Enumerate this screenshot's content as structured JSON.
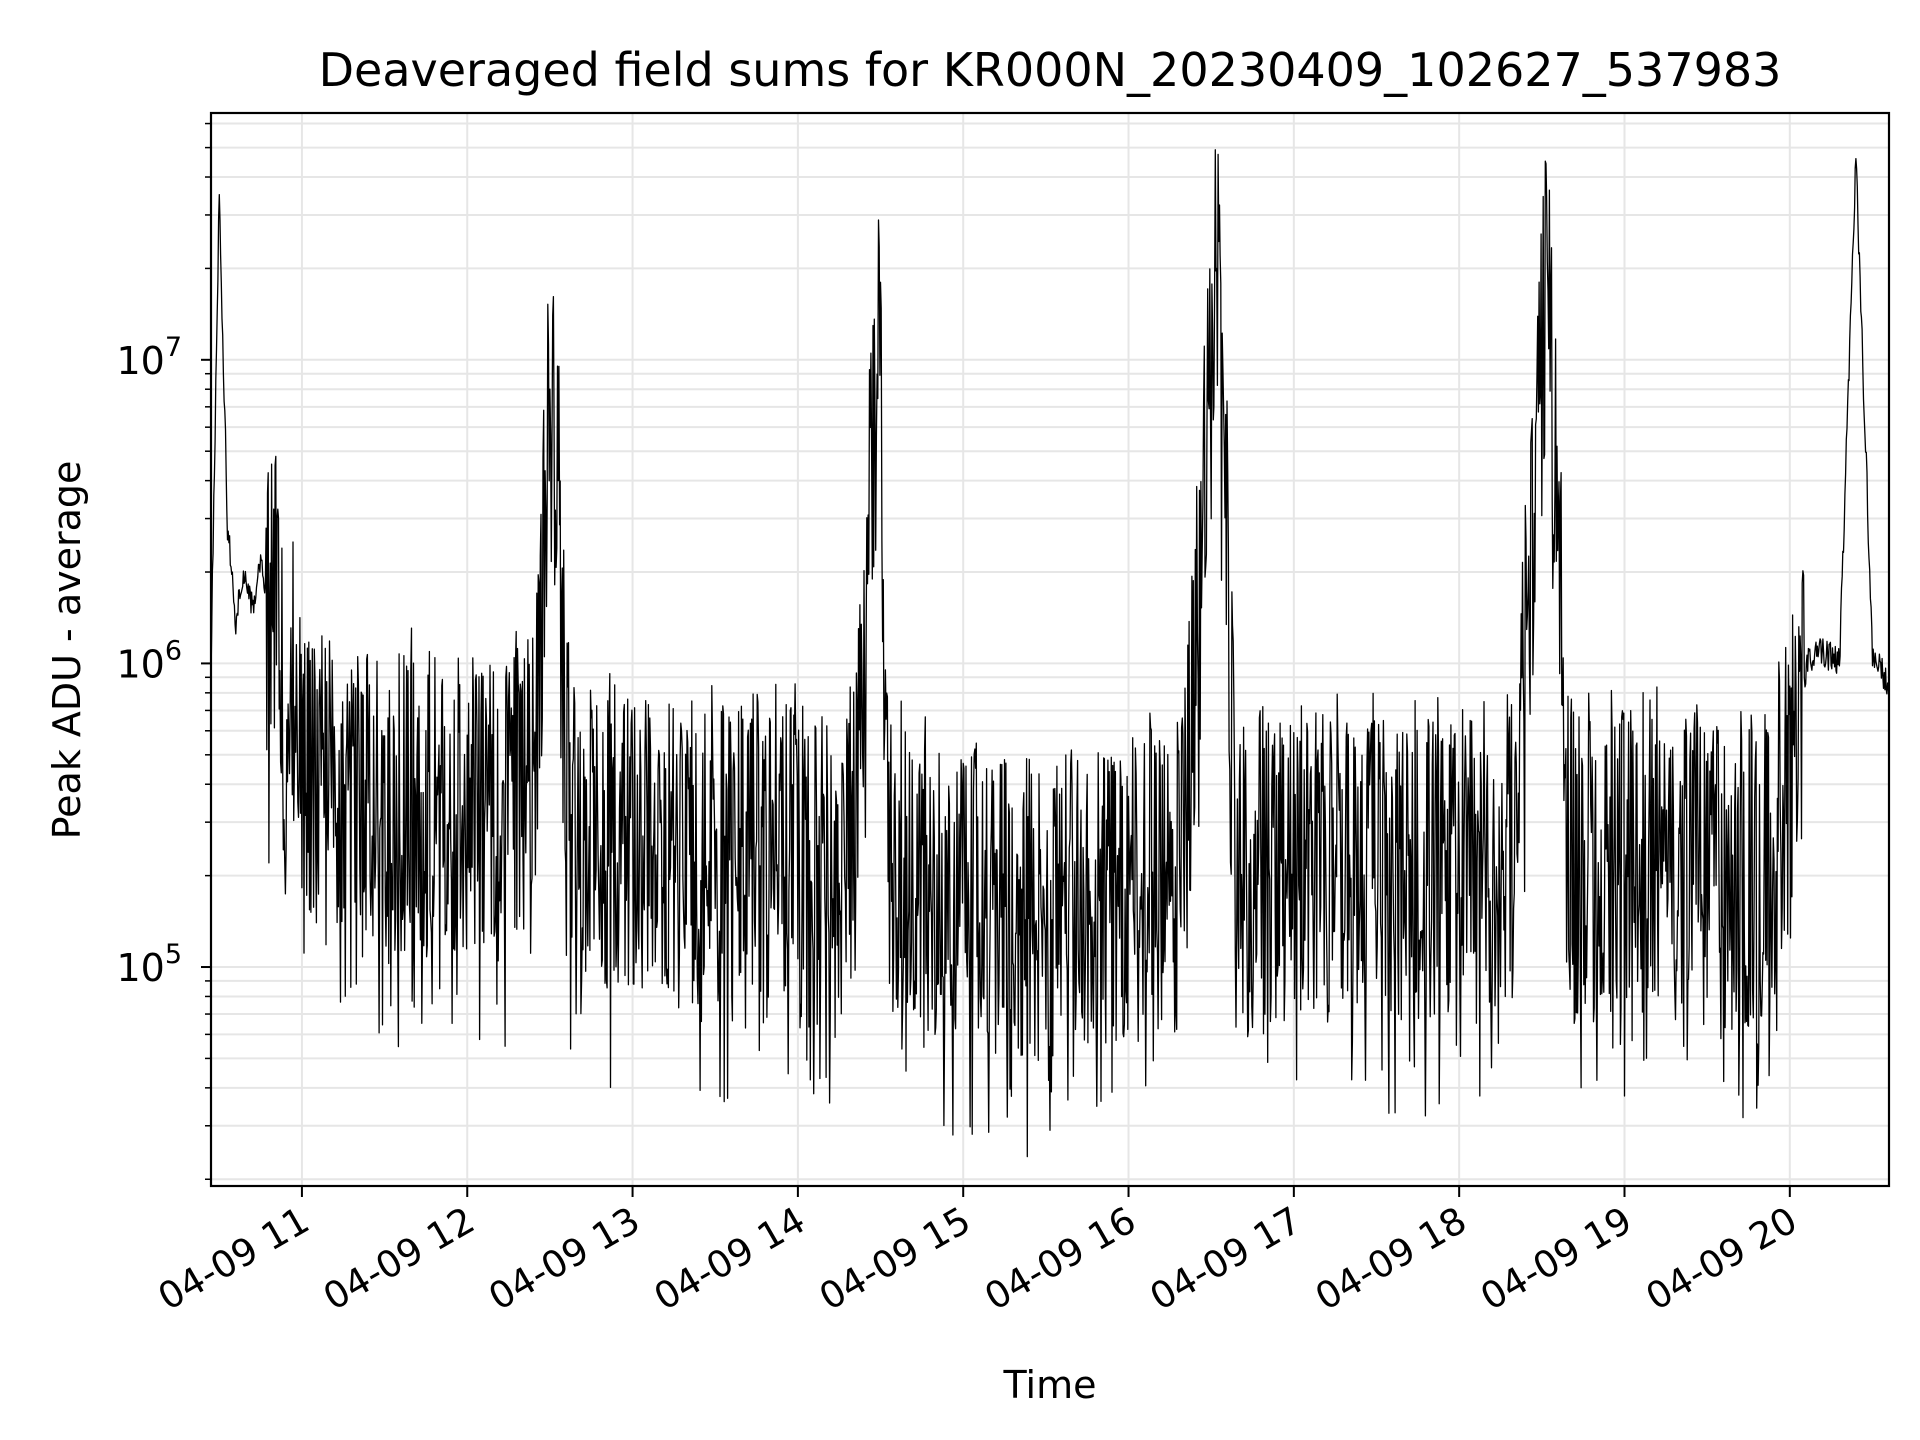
{
  "chart_data": {
    "type": "line",
    "title": "Deaveraged field sums for KR000N_20230409_102627_537983",
    "xlabel": "Time",
    "ylabel": "Peak ADU - average",
    "yscale": "log",
    "grid": true,
    "line_color": "#000000",
    "xlim": [
      "2023-04-09 10:27",
      "2023-04-09 20:36"
    ],
    "ylim": [
      19000,
      65000000
    ],
    "x_tick_labels": [
      "04-09 11",
      "04-09 12",
      "04-09 13",
      "04-09 14",
      "04-09 15",
      "04-09 16",
      "04-09 17",
      "04-09 18",
      "04-09 19",
      "04-09 20"
    ],
    "y_tick_labels": [
      {
        "value": 100000,
        "base": "10",
        "exp": "5"
      },
      {
        "value": 1000000,
        "base": "10",
        "exp": "6"
      },
      {
        "value": 10000000,
        "base": "10",
        "exp": "7"
      }
    ],
    "series": [
      {
        "x": [
          "2023-04-09 10:27",
          "2023-04-09 10:30",
          "2023-04-09 10:33",
          "2023-04-09 10:36",
          "2023-04-09 10:39",
          "2023-04-09 10:42",
          "2023-04-09 10:45",
          "2023-04-09 10:48",
          "2023-04-09 10:51",
          "2023-04-09 10:54",
          "2023-04-09 10:57",
          "2023-04-09 11:00",
          "2023-04-09 11:06",
          "2023-04-09 11:12",
          "2023-04-09 11:18",
          "2023-04-09 11:24",
          "2023-04-09 11:30",
          "2023-04-09 11:36",
          "2023-04-09 11:42",
          "2023-04-09 11:48",
          "2023-04-09 11:54",
          "2023-04-09 12:00",
          "2023-04-09 12:06",
          "2023-04-09 12:12",
          "2023-04-09 12:18",
          "2023-04-09 12:24",
          "2023-04-09 12:30",
          "2023-04-09 12:33",
          "2023-04-09 12:36",
          "2023-04-09 12:42",
          "2023-04-09 12:48",
          "2023-04-09 12:54",
          "2023-04-09 13:00",
          "2023-04-09 13:10",
          "2023-04-09 13:20",
          "2023-04-09 13:30",
          "2023-04-09 13:40",
          "2023-04-09 13:50",
          "2023-04-09 14:00",
          "2023-04-09 14:10",
          "2023-04-09 14:20",
          "2023-04-09 14:30",
          "2023-04-09 14:32",
          "2023-04-09 14:40",
          "2023-04-09 14:50",
          "2023-04-09 15:00",
          "2023-04-09 15:10",
          "2023-04-09 15:20",
          "2023-04-09 15:30",
          "2023-04-09 15:35",
          "2023-04-09 15:40",
          "2023-04-09 15:50",
          "2023-04-09 16:00",
          "2023-04-09 16:10",
          "2023-04-09 16:20",
          "2023-04-09 16:32",
          "2023-04-09 16:40",
          "2023-04-09 16:50",
          "2023-04-09 17:00",
          "2023-04-09 17:10",
          "2023-04-09 17:20",
          "2023-04-09 17:30",
          "2023-04-09 17:40",
          "2023-04-09 17:50",
          "2023-04-09 18:00",
          "2023-04-09 18:10",
          "2023-04-09 18:20",
          "2023-04-09 18:32",
          "2023-04-09 18:40",
          "2023-04-09 18:50",
          "2023-04-09 19:00",
          "2023-04-09 19:10",
          "2023-04-09 19:20",
          "2023-04-09 19:30",
          "2023-04-09 19:40",
          "2023-04-09 19:50",
          "2023-04-09 20:00",
          "2023-04-09 20:06",
          "2023-04-09 20:12",
          "2023-04-09 20:18",
          "2023-04-09 20:24",
          "2023-04-09 20:30",
          "2023-04-09 20:36"
        ],
        "y": [
          1000000,
          35000000,
          2800000,
          1400000,
          2000000,
          1500000,
          2200000,
          1400000,
          1800000,
          600000,
          900000,
          500000,
          400000,
          350000,
          300000,
          320000,
          280000,
          350000,
          380000,
          360000,
          330000,
          350000,
          330000,
          340000,
          360000,
          350000,
          8000000,
          4000000,
          330000,
          300000,
          280000,
          260000,
          250000,
          240000,
          230000,
          230000,
          240000,
          230000,
          240000,
          220000,
          230000,
          18000000,
          220000,
          200000,
          190000,
          180000,
          170000,
          160000,
          150000,
          150000,
          160000,
          170000,
          180000,
          200000,
          220000,
          20000000,
          210000,
          200000,
          210000,
          220000,
          230000,
          220000,
          200000,
          210000,
          220000,
          210000,
          220000,
          21000000,
          210000,
          220000,
          230000,
          240000,
          220000,
          200000,
          190000,
          200000,
          350000,
          1000000,
          1100000,
          1000000,
          46000000,
          1100000,
          850000
        ]
      }
    ]
  }
}
